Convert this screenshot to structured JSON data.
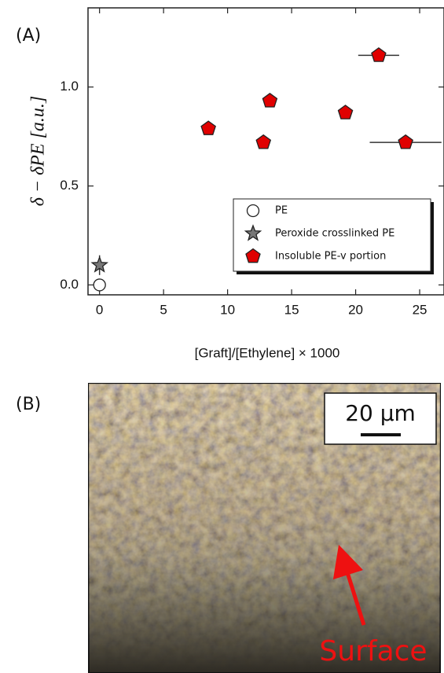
{
  "chart_data": {
    "type": "scatter",
    "panel_label": "(A)",
    "xlabel": "[Graft]/[Ethylene] × 1000",
    "ylabel": "δ − δPE [a.u.]",
    "xlim": [
      -0.9,
      26.9
    ],
    "ylim": [
      -0.05,
      1.4
    ],
    "xticks": [
      0,
      5,
      10,
      15,
      20,
      25
    ],
    "yticks": [
      {
        "value": 0,
        "label": "0.0"
      },
      {
        "value": 0.5,
        "label": "0.5"
      },
      {
        "value": 1,
        "label": "1.0"
      }
    ],
    "legend": "lower right",
    "series": [
      {
        "name": "PE",
        "color": "#ffffff",
        "marker": "circle",
        "x": [
          0
        ],
        "values": [
          0
        ]
      },
      {
        "name": "Peroxide crosslinked PE",
        "color": "#777777",
        "marker": "star",
        "x": [
          0
        ],
        "values": [
          0.1
        ],
        "yerr": [
          0.05
        ]
      },
      {
        "name": "Insoluble PE-v portion",
        "color": "#e00000",
        "marker": "pentagon",
        "x": [
          8.5,
          12.8,
          13.3,
          19.2,
          21.8,
          23.9
        ],
        "values": [
          0.79,
          0.72,
          0.93,
          0.87,
          1.16,
          0.72
        ],
        "xerr": [
          null,
          null,
          null,
          null,
          1.6,
          2.8
        ]
      }
    ]
  },
  "image_panel": {
    "label": "(B)",
    "scale_bar": "20 µm",
    "annotation": "Surface"
  }
}
